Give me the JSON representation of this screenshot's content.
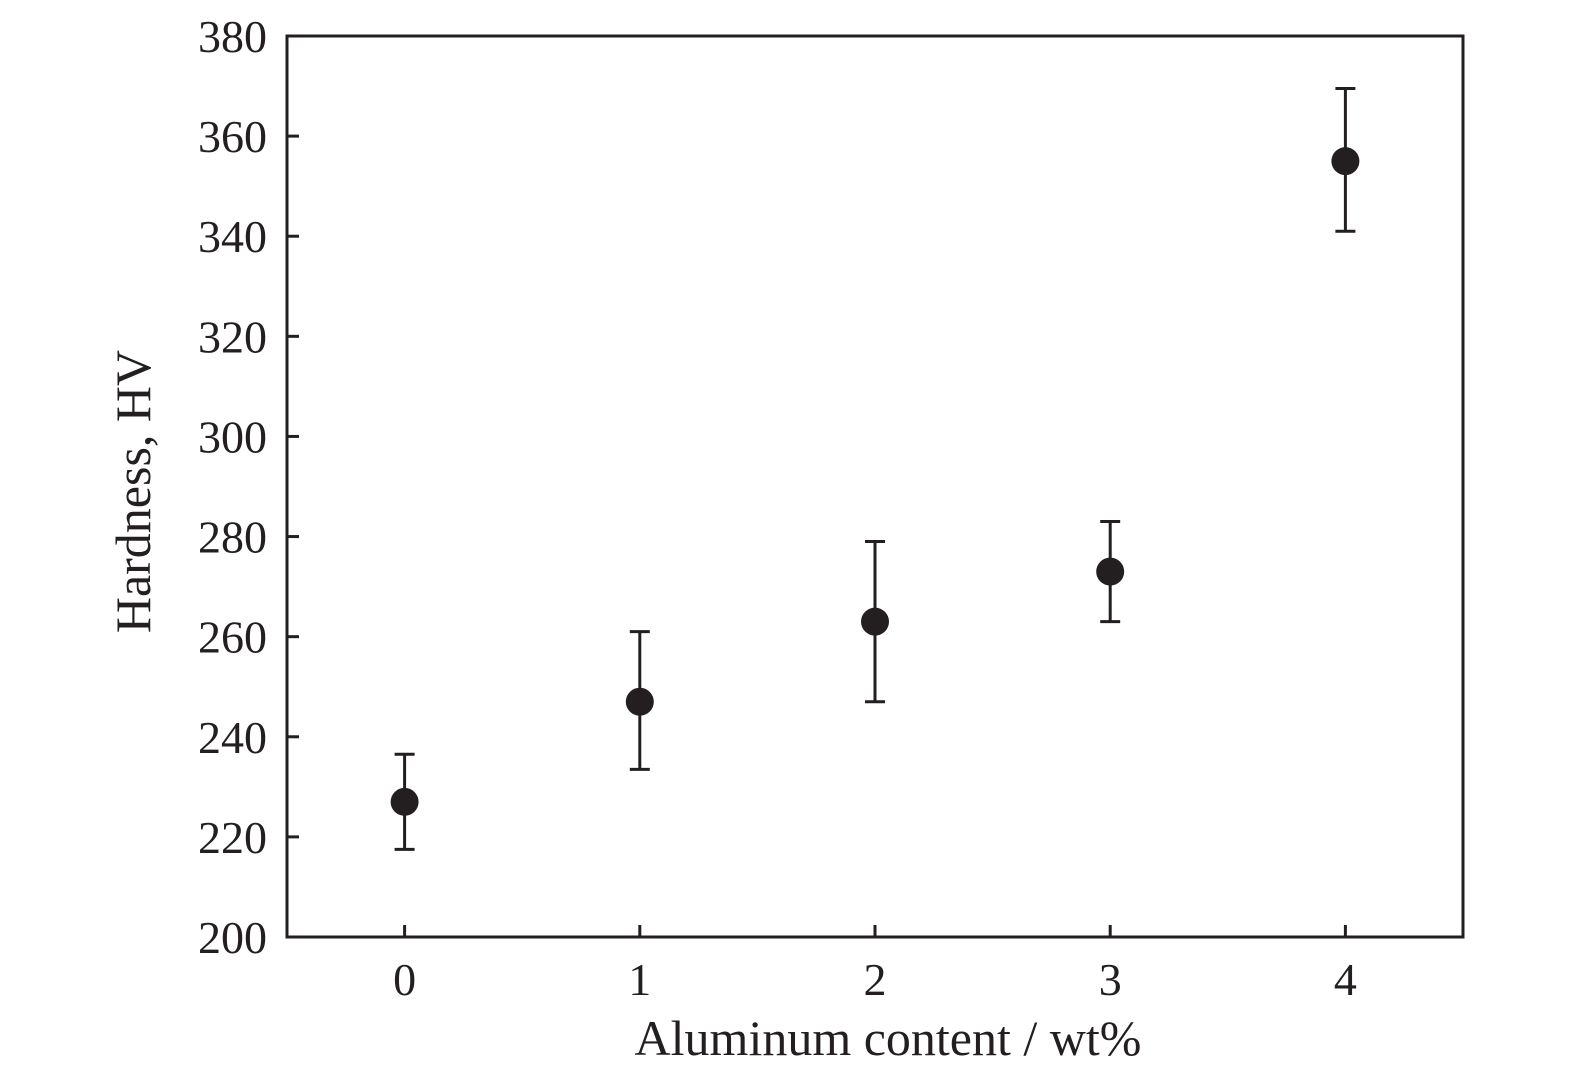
{
  "chart_data": {
    "type": "scatter",
    "title": "",
    "xlabel": "Aluminum content / wt%",
    "ylabel": "Hardness, HV",
    "xlim": [
      -0.5,
      4.5
    ],
    "ylim": [
      200,
      380
    ],
    "xticks": [
      0,
      1,
      2,
      3,
      4
    ],
    "yticks": [
      200,
      220,
      240,
      260,
      280,
      300,
      320,
      340,
      360,
      380
    ],
    "grid": false,
    "legend": "none",
    "colors": {
      "marker": "#231f20",
      "axis": "#231f20"
    },
    "series": [
      {
        "x": [
          0,
          1,
          2,
          3,
          4
        ],
        "y": [
          227,
          247,
          263,
          273,
          355
        ],
        "error_low": [
          217.5,
          233.5,
          247,
          263,
          341
        ],
        "error_high": [
          236.5,
          261,
          279,
          283,
          369.5
        ]
      }
    ]
  }
}
